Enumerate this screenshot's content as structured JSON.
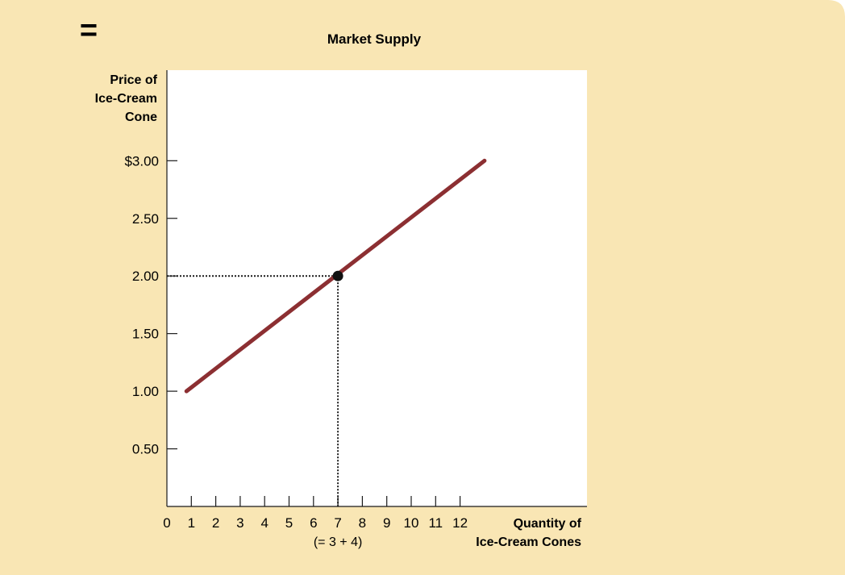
{
  "colors": {
    "panel": "#f9e6b4",
    "plot_bg": "#ffffff",
    "line": "#8c2f32",
    "axis": "#1a1a1a",
    "point": "#111111"
  },
  "operator_symbol": "=",
  "chart_data": {
    "type": "line",
    "title": "Market Supply",
    "ylabel": [
      "Price of",
      "Ice-Cream",
      "Cone"
    ],
    "xlabel": [
      "Quantity of",
      "Ice-Cream Cones"
    ],
    "x_ticks": [
      0,
      1,
      2,
      3,
      4,
      5,
      6,
      7,
      8,
      9,
      10,
      11,
      12
    ],
    "y_ticks": [
      {
        "value": 0.5,
        "label": "0.50"
      },
      {
        "value": 1.0,
        "label": "1.00"
      },
      {
        "value": 1.5,
        "label": "1.50"
      },
      {
        "value": 2.0,
        "label": "2.00"
      },
      {
        "value": 2.5,
        "label": "2.50"
      },
      {
        "value": 3.0,
        "label": "$3.00"
      }
    ],
    "xlim": [
      0,
      17
    ],
    "ylim": [
      0,
      3.8
    ],
    "series": [
      {
        "points": [
          {
            "x": 0.8,
            "y": 1.0
          },
          {
            "x": 13,
            "y": 3.0
          }
        ]
      }
    ],
    "highlight": {
      "x": 7,
      "y": 2.0,
      "note": "(= 3 + 4)"
    },
    "grid": false
  }
}
